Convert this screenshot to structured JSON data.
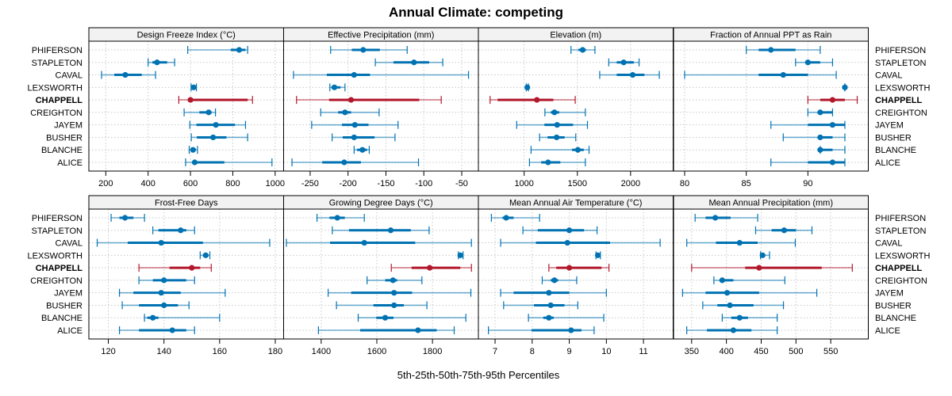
{
  "chart_data": {
    "type": "dot-interval",
    "title": "Annual Climate: competing",
    "xlabel": "5th-25th-50th-75th-95th Percentiles",
    "sites": [
      "PHIFERSON",
      "STAPLETON",
      "CAVAL",
      "LEXSWORTH",
      "CHAPPELL",
      "CREIGHTON",
      "JAYEM",
      "BUSHER",
      "BLANCHE",
      "ALICE"
    ],
    "highlight_site": "CHAPPELL",
    "colors": {
      "normal": "#0072b2",
      "highlight": "#b2182b",
      "strip_bg": "#f2f2f2",
      "grid": "#c8c8c8"
    },
    "grid": true,
    "panels": [
      {
        "name": "Design Freeze Index (°C)",
        "xlim": [
          120,
          1040
        ],
        "ticks": [
          200,
          400,
          600,
          800,
          1000
        ],
        "tick_labels": [
          "200",
          "400",
          "600",
          "800",
          "1000"
        ],
        "values": [
          [
            587,
            790,
            830,
            860,
            870
          ],
          [
            400,
            420,
            442,
            490,
            525
          ],
          [
            180,
            240,
            292,
            370,
            435
          ],
          [
            603,
            608,
            615,
            620,
            628
          ],
          [
            545,
            590,
            600,
            870,
            893
          ],
          [
            570,
            642,
            686,
            700,
            718
          ],
          [
            597,
            628,
            720,
            810,
            860
          ],
          [
            604,
            630,
            707,
            770,
            870
          ],
          [
            594,
            600,
            612,
            625,
            633
          ],
          [
            577,
            610,
            620,
            760,
            985
          ]
        ]
      },
      {
        "name": "Effective Precipitation (mm)",
        "xlim": [
          -285,
          -28
        ],
        "ticks": [
          -250,
          -200,
          -150,
          -100,
          -50
        ],
        "tick_labels": [
          "-250",
          "-200",
          "-150",
          "-100",
          "-50"
        ],
        "values": [
          [
            -223,
            -195,
            -180,
            -158,
            -122
          ],
          [
            -164,
            -140,
            -113,
            -93,
            -75
          ],
          [
            -272,
            -228,
            -192,
            -171,
            -41
          ],
          [
            -224,
            -222,
            -218,
            -210,
            -204
          ],
          [
            -268,
            -225,
            -196,
            -106,
            -77
          ],
          [
            -236,
            -213,
            -204,
            -196,
            -159
          ],
          [
            -248,
            -208,
            -191,
            -173,
            -134
          ],
          [
            -221,
            -207,
            -192,
            -165,
            -138
          ],
          [
            -192,
            -188,
            -181,
            -175,
            -172
          ],
          [
            -274,
            -234,
            -205,
            -183,
            -107
          ]
        ]
      },
      {
        "name": "Elevation (m)",
        "xlim": [
          570,
          2400
        ],
        "ticks": [
          1000,
          1500,
          2000
        ],
        "tick_labels": [
          "1000",
          "1500",
          "2000"
        ],
        "values": [
          [
            1440,
            1510,
            1550,
            1580,
            1665
          ],
          [
            1795,
            1870,
            1935,
            2030,
            2080
          ],
          [
            1710,
            1870,
            2020,
            2130,
            2270
          ],
          [
            1020,
            1025,
            1030,
            1035,
            1040
          ],
          [
            680,
            750,
            1120,
            1275,
            1480
          ],
          [
            1195,
            1250,
            1285,
            1330,
            1575
          ],
          [
            930,
            1190,
            1310,
            1460,
            1595
          ],
          [
            1145,
            1220,
            1305,
            1380,
            1485
          ],
          [
            1065,
            1450,
            1505,
            1560,
            1610
          ],
          [
            1050,
            1160,
            1225,
            1340,
            1575
          ]
        ]
      },
      {
        "name": "Fraction of Annual PPT as Rain",
        "xlim": [
          79.1,
          94.9
        ],
        "ticks": [
          80,
          85,
          90
        ],
        "tick_labels": [
          "80",
          "85",
          "90"
        ],
        "values": [
          [
            85,
            86,
            87,
            89,
            91
          ],
          [
            89,
            90,
            90,
            91,
            92
          ],
          [
            80,
            86,
            88,
            90,
            92.3
          ],
          [
            93,
            93,
            93,
            93,
            93
          ],
          [
            90,
            91,
            92,
            93,
            94
          ],
          [
            90,
            91,
            91,
            92,
            92
          ],
          [
            87,
            90,
            92,
            93,
            93
          ],
          [
            88,
            91,
            91,
            92,
            93
          ],
          [
            91,
            91,
            91,
            92,
            93
          ],
          [
            87,
            90,
            92,
            93,
            93
          ]
        ]
      },
      {
        "name": "Frost-Free Days",
        "xlim": [
          113,
          183
        ],
        "ticks": [
          120,
          140,
          160,
          180
        ],
        "tick_labels": [
          "120",
          "140",
          "160",
          "180"
        ],
        "values": [
          [
            121,
            124,
            126,
            129,
            133
          ],
          [
            136,
            138,
            146,
            148,
            151
          ],
          [
            116,
            127,
            139,
            154,
            178
          ],
          [
            153,
            154,
            155,
            156,
            156.5
          ],
          [
            131,
            142,
            150,
            153,
            157
          ],
          [
            131,
            136,
            140,
            148,
            151
          ],
          [
            124,
            129,
            139,
            146,
            162
          ],
          [
            125,
            131,
            140,
            145,
            149
          ],
          [
            133,
            134,
            136,
            138,
            160
          ],
          [
            124,
            131,
            143,
            148,
            151
          ]
        ]
      },
      {
        "name": "Growing Degree Days (°C)",
        "xlim": [
          1265,
          1965
        ],
        "ticks": [
          1400,
          1600,
          1800
        ],
        "tick_labels": [
          "1400",
          "1600",
          "1800"
        ],
        "values": [
          [
            1385,
            1430,
            1458,
            1485,
            1555
          ],
          [
            1440,
            1500,
            1650,
            1722,
            1788
          ],
          [
            1275,
            1432,
            1555,
            1738,
            1940
          ],
          [
            1893,
            1895,
            1900,
            1905,
            1910
          ],
          [
            1652,
            1725,
            1790,
            1900,
            1940
          ],
          [
            1565,
            1630,
            1658,
            1673,
            1762
          ],
          [
            1425,
            1508,
            1662,
            1727,
            1938
          ],
          [
            1455,
            1588,
            1662,
            1697,
            1780
          ],
          [
            1533,
            1598,
            1630,
            1660,
            1920
          ],
          [
            1390,
            1540,
            1748,
            1815,
            1878
          ]
        ]
      },
      {
        "name": "Mean Annual Air Temperature (°C)",
        "xlim": [
          6.55,
          11.8
        ],
        "ticks": [
          7,
          8,
          9,
          10,
          11
        ],
        "tick_labels": [
          "7",
          "8",
          "9",
          "10",
          "11"
        ],
        "values": [
          [
            6.9,
            7.2,
            7.3,
            7.5,
            8.2
          ],
          [
            7.75,
            8.15,
            9.0,
            9.4,
            9.75
          ],
          [
            7.15,
            8.1,
            8.95,
            10.1,
            11.45
          ],
          [
            9.72,
            9.74,
            9.77,
            9.8,
            9.84
          ],
          [
            8.45,
            8.65,
            9.0,
            9.87,
            10.07
          ],
          [
            8.27,
            8.5,
            8.6,
            8.7,
            9.2
          ],
          [
            7.15,
            7.5,
            8.45,
            9.0,
            10.0
          ],
          [
            7.23,
            8.05,
            8.5,
            8.87,
            9.23
          ],
          [
            7.9,
            8.3,
            8.45,
            8.58,
            9.93
          ],
          [
            6.82,
            7.98,
            9.05,
            9.33,
            9.67
          ]
        ]
      },
      {
        "name": "Mean Annual Precipitation (mm)",
        "xlim": [
          324,
          604
        ],
        "ticks": [
          350,
          400,
          450,
          500,
          550
        ],
        "tick_labels": [
          "350",
          "400",
          "450",
          "500",
          "550"
        ],
        "values": [
          [
            355,
            370,
            384,
            406,
            445
          ],
          [
            442,
            465,
            483,
            500,
            523
          ],
          [
            343,
            385,
            419,
            445,
            499
          ],
          [
            449,
            450,
            452,
            455,
            462
          ],
          [
            350,
            427,
            447,
            537,
            581
          ],
          [
            382,
            390,
            394,
            410,
            484
          ],
          [
            337,
            370,
            401,
            447,
            530
          ],
          [
            366,
            387,
            405,
            439,
            482
          ],
          [
            394,
            407,
            419,
            431,
            473
          ],
          [
            343,
            372,
            410,
            436,
            473
          ]
        ]
      }
    ]
  }
}
